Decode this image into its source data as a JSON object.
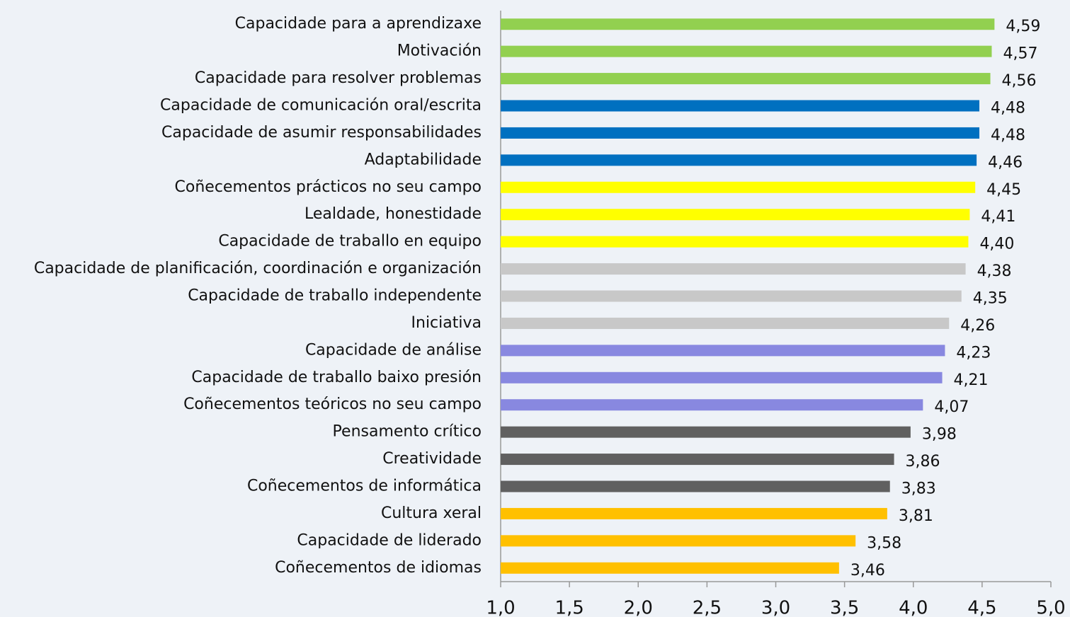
{
  "chart_data": {
    "type": "barh",
    "categories": [
      "Capacidade para a aprendizaxe",
      "Motivación",
      "Capacidade para resolver problemas",
      "Capacidade de comunicación oral/escrita",
      "Capacidade de asumir responsabilidades",
      "Adaptabilidade",
      "Coñecementos prácticos no seu campo",
      "Lealdade, honestidade",
      "Capacidade de traballo en equipo",
      "Capacidade de planificación, coordinación e organización",
      "Capacidade de traballo independente",
      "Iniciativa",
      "Capacidade de análise",
      "Capacidade de traballo baixo presión",
      "Coñecementos teóricos no seu campo",
      "Pensamento crítico",
      "Creatividade",
      "Coñecementos de informática",
      "Cultura xeral",
      "Capacidade de liderado",
      "Coñecementos de idiomas"
    ],
    "values": [
      4.59,
      4.57,
      4.56,
      4.48,
      4.48,
      4.46,
      4.45,
      4.41,
      4.4,
      4.38,
      4.35,
      4.26,
      4.23,
      4.21,
      4.07,
      3.98,
      3.86,
      3.83,
      3.81,
      3.58,
      3.46
    ],
    "value_labels": [
      "4,59",
      "4,57",
      "4,56",
      "4,48",
      "4,48",
      "4,46",
      "4,45",
      "4,41",
      "4,40",
      "4,38",
      "4,35",
      "4,26",
      "4,23",
      "4,21",
      "4,07",
      "3,98",
      "3,86",
      "3,83",
      "3,81",
      "3,58",
      "3,46"
    ],
    "colors": [
      "#92d050",
      "#92d050",
      "#92d050",
      "#0070c0",
      "#0070c0",
      "#0070c0",
      "#ffff00",
      "#ffff00",
      "#ffff00",
      "#c8c8c8",
      "#c8c8c8",
      "#c8c8c8",
      "#8888e0",
      "#8888e0",
      "#8888e0",
      "#606060",
      "#606060",
      "#606060",
      "#ffc000",
      "#ffc000",
      "#ffc000"
    ],
    "xlim": [
      1,
      5
    ],
    "xticks": [
      {
        "value": 1,
        "label": "1,0"
      },
      {
        "value": 1.5,
        "label": "1,5"
      },
      {
        "value": 2,
        "label": "2,0"
      },
      {
        "value": 2.5,
        "label": "2,5"
      },
      {
        "value": 3,
        "label": "3,0"
      },
      {
        "value": 3.5,
        "label": "3,5"
      },
      {
        "value": 4,
        "label": "4,0"
      },
      {
        "value": 4.5,
        "label": "4,5"
      },
      {
        "value": 5,
        "label": "5,0"
      }
    ],
    "grid": false
  }
}
